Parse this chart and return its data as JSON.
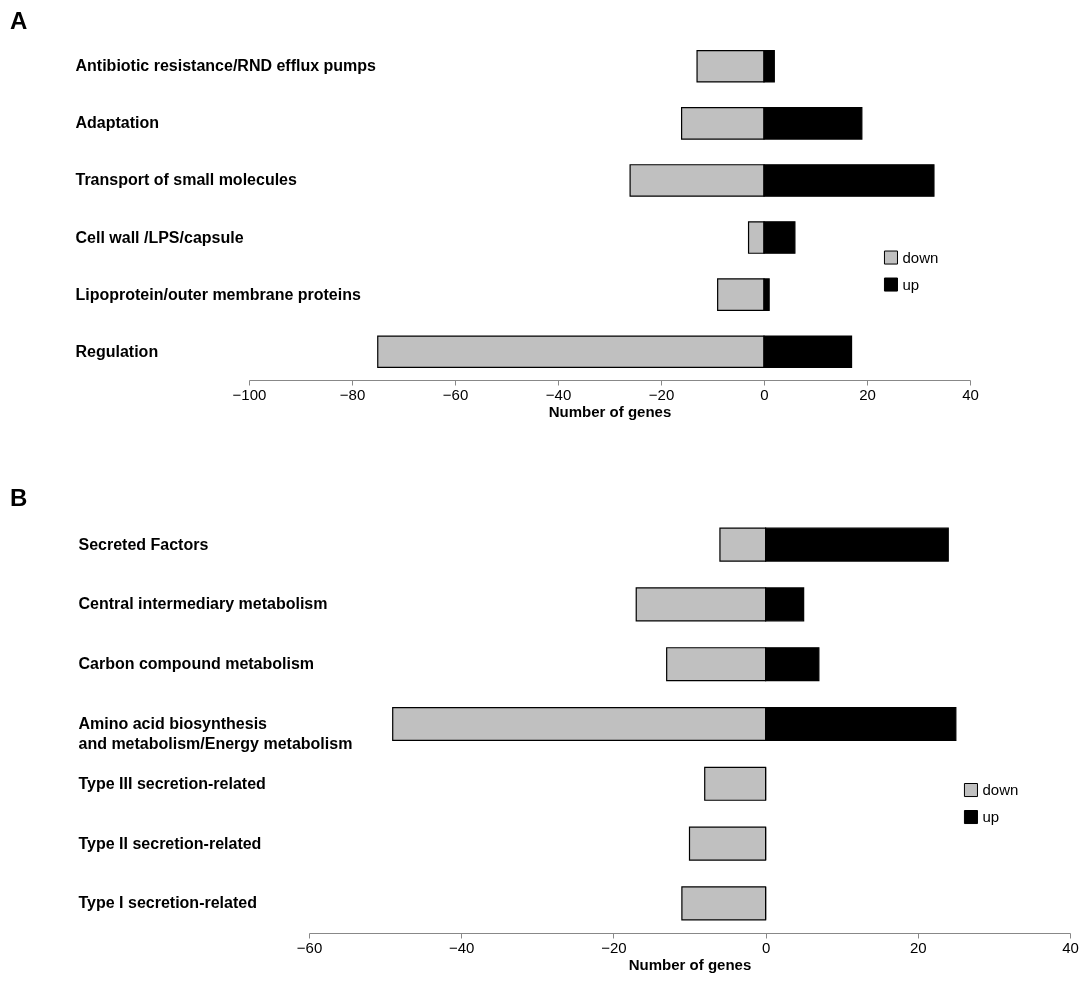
{
  "chart_data": [
    {
      "type": "bar",
      "orientation": "horizontal",
      "stacked": true,
      "title": "A",
      "xlabel": "Number of genes",
      "categories": [
        "Antibiotic resistance/RND efflux pumps",
        "Adaptation",
        "Transport of small molecules",
        "Cell wall /LPS/capsule",
        "Lipoprotein/outer membrane proteins",
        "Regulation"
      ],
      "series": [
        {
          "name": "down",
          "color": "#c0c0c0",
          "values": [
            -13,
            -16,
            -26,
            -3,
            -9,
            -75
          ]
        },
        {
          "name": "up",
          "color": "#000000",
          "values": [
            2,
            19,
            33,
            6,
            1,
            17
          ]
        }
      ],
      "xlim": [
        -100,
        40
      ],
      "xticks": [
        -100,
        -80,
        -60,
        -40,
        -20,
        0,
        20,
        40
      ],
      "grid": false,
      "legend": "right"
    },
    {
      "type": "bar",
      "orientation": "horizontal",
      "stacked": true,
      "title": "B",
      "xlabel": "Number of genes",
      "categories": [
        "Secreted Factors",
        "Central intermediary metabolism",
        "Carbon compound metabolism",
        "Amino acid biosynthesis\nand metabolism/Energy metabolism",
        "Type III secretion-related",
        "Type II secretion-related",
        "Type I secretion-related"
      ],
      "series": [
        {
          "name": "down",
          "color": "#c0c0c0",
          "values": [
            -6,
            -17,
            -13,
            -49,
            -8,
            -10,
            -11
          ]
        },
        {
          "name": "up",
          "color": "#000000",
          "values": [
            24,
            5,
            7,
            25,
            0,
            0,
            0
          ]
        }
      ],
      "xlim": [
        -60,
        40
      ],
      "xticks": [
        -60,
        -40,
        -20,
        0,
        20,
        40
      ],
      "grid": false,
      "legend": "right"
    }
  ]
}
